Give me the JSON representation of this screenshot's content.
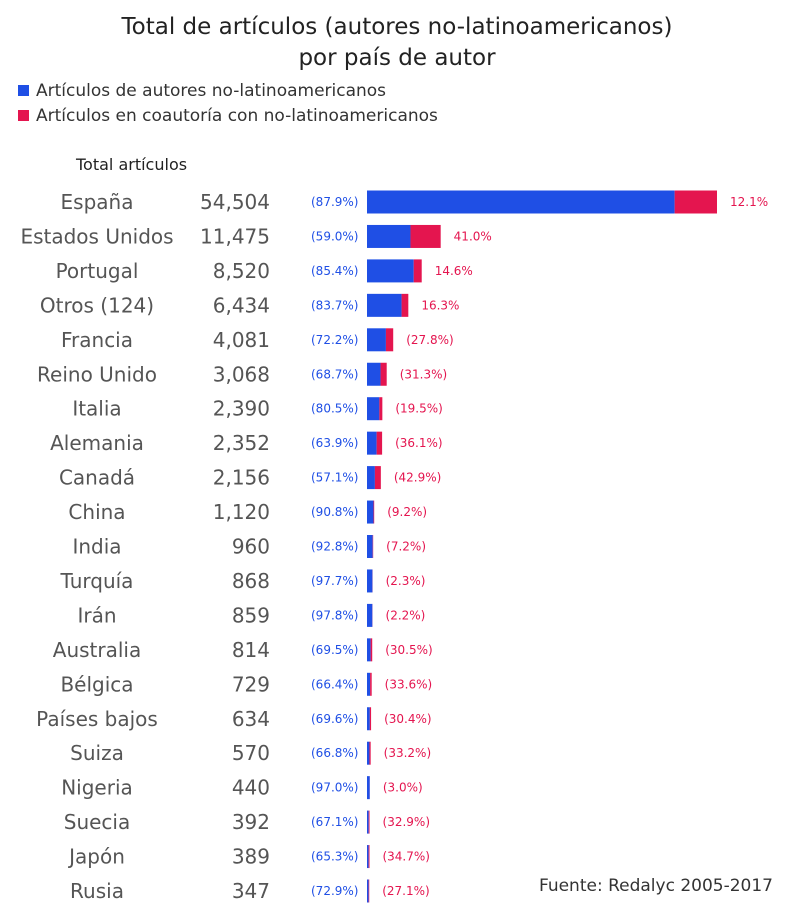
{
  "chart_data": {
    "type": "bar",
    "title": "Total de artículos (autores no-latinoamericanos)",
    "subtitle": "por país de autor",
    "column_header": "Total artículos",
    "source": "Fuente: Redalyc 2005-2017",
    "stacked": true,
    "orientation": "horizontal",
    "grid": false,
    "legend_position": "top-left",
    "categories": [
      "España",
      "Estados Unidos",
      "Portugal",
      "Otros (124)",
      "Francia",
      "Reino Unido",
      "Italia",
      "Alemania",
      "Canadá",
      "China",
      "India",
      "Turquía",
      "Irán",
      "Australia",
      "Bélgica",
      "Países bajos",
      "Suiza",
      "Nigeria",
      "Suecia",
      "Japón",
      "Rusia"
    ],
    "totals": [
      54504,
      11475,
      8520,
      6434,
      4081,
      3068,
      2390,
      2352,
      2156,
      1120,
      960,
      868,
      859,
      814,
      729,
      634,
      570,
      440,
      392,
      389,
      347
    ],
    "total_labels": [
      "54,504",
      "11,475",
      "8,520",
      "6,434",
      "4,081",
      "3,068",
      "2,390",
      "2,352",
      "2,156",
      "1,120",
      "960",
      "868",
      "859",
      "814",
      "729",
      "634",
      "570",
      "440",
      "392",
      "389",
      "347"
    ],
    "series": [
      {
        "name": "Artículos de autores no-latinoamericanos",
        "color": "#1f4fe5",
        "percent_values": [
          87.9,
          59.0,
          85.4,
          83.7,
          72.2,
          68.7,
          80.5,
          63.9,
          57.1,
          90.8,
          92.8,
          97.7,
          97.8,
          69.5,
          66.4,
          69.6,
          66.8,
          97.0,
          67.1,
          65.3,
          72.9
        ],
        "percent_labels": [
          "(87.9%)",
          "(59.0%)",
          "(85.4%)",
          "(83.7%)",
          "(72.2%)",
          "(68.7%)",
          "(80.5%)",
          "(63.9%)",
          "(57.1%)",
          "(90.8%)",
          "(92.8%)",
          "(97.7%)",
          "(97.8%)",
          "(69.5%)",
          "(66.4%)",
          "(69.6%)",
          "(66.8%)",
          "(97.0%)",
          "(67.1%)",
          "(65.3%)",
          "(72.9%)"
        ]
      },
      {
        "name": "Artículos en coautoría con no-latinoamericanos",
        "color": "#e4154f",
        "percent_values": [
          12.1,
          41.0,
          14.6,
          16.3,
          27.8,
          31.3,
          19.5,
          36.1,
          42.9,
          9.2,
          7.2,
          2.3,
          2.2,
          30.5,
          33.6,
          30.4,
          33.2,
          3.0,
          32.9,
          34.7,
          27.1
        ],
        "percent_labels": [
          "12.1%",
          "41.0%",
          "14.6%",
          "16.3%",
          "(27.8%)",
          "(31.3%)",
          "(19.5%)",
          "(36.1%)",
          "(42.9%)",
          "(9.2%)",
          "(7.2%)",
          "(2.3%)",
          "(2.2%)",
          "(30.5%)",
          "(33.6%)",
          "(30.4%)",
          "(33.2%)",
          "(3.0%)",
          "(32.9%)",
          "(34.7%)",
          "(27.1%)"
        ]
      }
    ],
    "xlim": [
      0,
      54504
    ]
  }
}
